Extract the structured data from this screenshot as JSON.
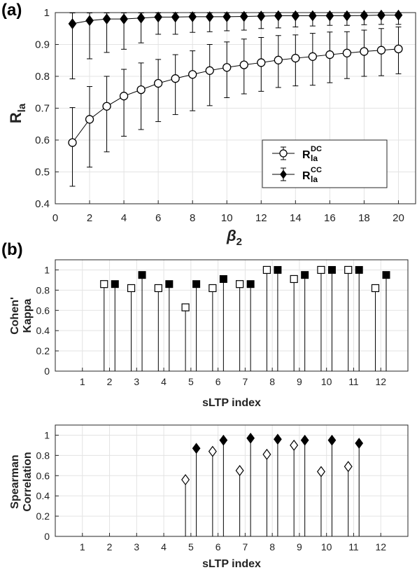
{
  "panel_labels": {
    "a": "(a)",
    "b": "(b)"
  },
  "chart_data": [
    {
      "type": "line",
      "panel": "(a)",
      "xlabel": "β",
      "xlabel_sub": "2",
      "ylabel": "R",
      "ylabel_sub": "la",
      "xlim": [
        0,
        21
      ],
      "ylim": [
        0.4,
        1.0
      ],
      "xticks": [
        0,
        2,
        4,
        6,
        8,
        10,
        12,
        14,
        16,
        18,
        20
      ],
      "yticks": [
        0.4,
        0.5,
        0.6,
        0.7,
        0.8,
        0.9,
        1
      ],
      "grid": true,
      "legend_position": "lower-right",
      "x": [
        1,
        2,
        3,
        4,
        5,
        6,
        7,
        8,
        9,
        10,
        11,
        12,
        13,
        14,
        15,
        16,
        17,
        18,
        19,
        20
      ],
      "series": [
        {
          "name": "DC",
          "legend_main": "R",
          "legend_sub": "la",
          "legend_sup": "DC",
          "marker": "open-circle",
          "values": [
            0.592,
            0.665,
            0.706,
            0.738,
            0.758,
            0.778,
            0.793,
            0.806,
            0.818,
            0.828,
            0.836,
            0.843,
            0.851,
            0.857,
            0.862,
            0.868,
            0.873,
            0.878,
            0.882,
            0.886
          ],
          "err_low": [
            0.455,
            0.515,
            0.563,
            0.612,
            0.633,
            0.658,
            0.68,
            0.692,
            0.708,
            0.733,
            0.745,
            0.753,
            0.765,
            0.77,
            0.772,
            0.78,
            0.793,
            0.8,
            0.802,
            0.808
          ],
          "err_high": [
            0.702,
            0.768,
            0.8,
            0.822,
            0.842,
            0.853,
            0.868,
            0.88,
            0.9,
            0.908,
            0.917,
            0.922,
            0.928,
            0.93,
            0.935,
            0.939,
            0.94,
            0.945,
            0.95,
            0.955
          ]
        },
        {
          "name": "CC",
          "legend_main": "R",
          "legend_sub": "la",
          "legend_sup": "CC",
          "marker": "filled-diamond",
          "values": [
            0.965,
            0.975,
            0.98,
            0.98,
            0.983,
            0.986,
            0.986,
            0.987,
            0.987,
            0.987,
            0.988,
            0.989,
            0.99,
            0.99,
            0.99,
            0.99,
            0.99,
            0.991,
            0.992,
            0.992
          ],
          "err_low": [
            0.792,
            0.855,
            0.875,
            0.885,
            0.905,
            0.932,
            0.932,
            0.938,
            0.94,
            0.943,
            0.945,
            0.95,
            0.952,
            0.955,
            0.958,
            0.96,
            0.96,
            0.962,
            0.963,
            0.963
          ],
          "err_high": [
            0.999,
            0.999,
            0.999,
            0.999,
            0.999,
            0.999,
            0.999,
            0.999,
            0.999,
            0.999,
            0.999,
            0.999,
            0.999,
            0.999,
            0.999,
            0.999,
            0.999,
            0.999,
            0.999,
            0.999
          ]
        }
      ]
    },
    {
      "type": "stem",
      "panel": "(b)",
      "xlabel": "sLTP index",
      "ylabel_line1": "Cohen'",
      "ylabel_line2": "Kappa",
      "xlim": [
        0,
        13
      ],
      "ylim": [
        0,
        1.1
      ],
      "xticks": [
        1,
        2,
        3,
        4,
        5,
        6,
        7,
        8,
        9,
        10,
        11,
        12
      ],
      "yticks": [
        0,
        0.2,
        0.4,
        0.6,
        0.8,
        1
      ],
      "grid": true,
      "series": [
        {
          "marker": "open-square",
          "x": [
            1.8,
            2.8,
            3.8,
            4.8,
            5.8,
            6.8,
            7.8,
            8.8,
            9.8,
            10.8,
            11.8
          ],
          "values": [
            0.86,
            0.82,
            0.82,
            0.63,
            0.82,
            0.86,
            1.0,
            0.91,
            1.0,
            1.0,
            0.82
          ]
        },
        {
          "marker": "filled-square",
          "x": [
            2.2,
            3.2,
            4.2,
            5.2,
            6.2,
            7.2,
            8.2,
            9.2,
            10.2,
            11.2,
            12.2
          ],
          "values": [
            0.86,
            0.95,
            0.86,
            0.86,
            0.91,
            0.86,
            1.0,
            0.95,
            1.0,
            1.0,
            0.95
          ]
        }
      ]
    },
    {
      "type": "stem",
      "panel": "(b)",
      "xlabel": "sLTP index",
      "ylabel_line1": "Spearman",
      "ylabel_line2": "Correlation",
      "xlim": [
        0,
        13
      ],
      "ylim": [
        0,
        1.1
      ],
      "xticks": [
        1,
        2,
        3,
        4,
        5,
        6,
        7,
        8,
        9,
        10,
        11,
        12
      ],
      "yticks": [
        0,
        0.2,
        0.4,
        0.6,
        0.8,
        1
      ],
      "grid": true,
      "series": [
        {
          "marker": "open-diamond",
          "x": [
            4.8,
            5.8,
            6.8,
            7.8,
            8.8,
            9.8,
            10.8
          ],
          "values": [
            0.56,
            0.84,
            0.65,
            0.81,
            0.9,
            0.64,
            0.69
          ]
        },
        {
          "marker": "filled-diamond",
          "x": [
            5.2,
            6.2,
            7.2,
            8.2,
            9.2,
            10.2,
            11.2
          ],
          "values": [
            0.87,
            0.95,
            0.97,
            0.96,
            0.95,
            0.95,
            0.92
          ]
        }
      ]
    }
  ]
}
